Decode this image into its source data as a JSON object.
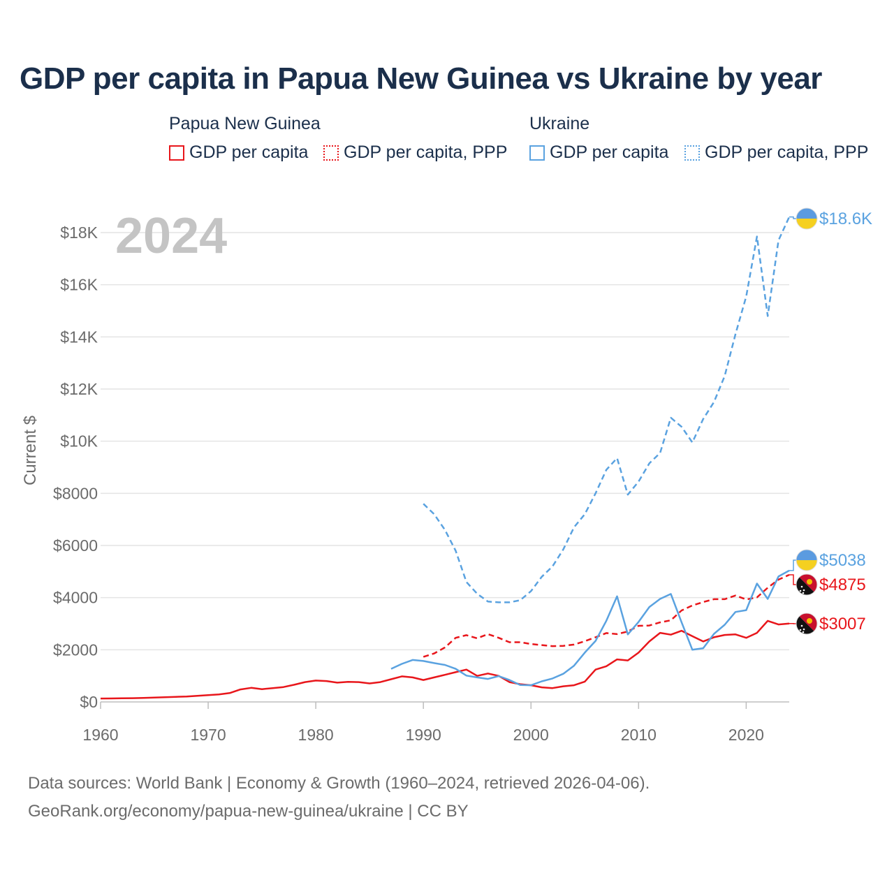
{
  "title": "GDP per capita in Papua New Guinea vs Ukraine by year",
  "legend": {
    "groups": [
      {
        "name": "Papua New Guinea",
        "items": [
          {
            "label": "GDP per capita",
            "style": "solid",
            "color": "#e8161b"
          },
          {
            "label": "GDP per capita, PPP",
            "style": "dotted",
            "color": "#e8161b"
          }
        ]
      },
      {
        "name": "Ukraine",
        "items": [
          {
            "label": "GDP per capita",
            "style": "solid",
            "color": "#5aa2e0"
          },
          {
            "label": "GDP per capita, PPP",
            "style": "dotted",
            "color": "#5aa2e0"
          }
        ]
      }
    ]
  },
  "year_label": "2024",
  "footer": {
    "line1": "Data sources: World Bank | Economy & Growth (1960–2024, retrieved 2026-04-06).",
    "line2": "GeoRank.org/economy/papua-new-guinea/ukraine | CC BY"
  },
  "chart_data": {
    "type": "line",
    "title": "GDP per capita in Papua New Guinea vs Ukraine by year",
    "xlabel": "",
    "ylabel": "Current $",
    "xlim": [
      1960,
      2024
    ],
    "ylim": [
      0,
      18700
    ],
    "x_ticks": [
      1960,
      1970,
      1980,
      1990,
      2000,
      2010,
      2020
    ],
    "x_tick_labels": [
      "1960",
      "1970",
      "1980",
      "1990",
      "2000",
      "2010",
      "2020"
    ],
    "y_ticks": [
      0,
      2000,
      4000,
      6000,
      8000,
      10000,
      12000,
      14000,
      16000,
      18000
    ],
    "y_tick_labels": [
      "$0",
      "$2000",
      "$4000",
      "$6000",
      "$8000",
      "$10K",
      "$12K",
      "$14K",
      "$16K",
      "$18K"
    ],
    "grid": true,
    "series": [
      {
        "name": "Papua New Guinea GDP per capita",
        "country": "Papua New Guinea",
        "color": "#e8161b",
        "dash": "solid",
        "end_label": "$3007",
        "flag": "png",
        "points": [
          [
            1960,
            130
          ],
          [
            1961,
            135
          ],
          [
            1962,
            140
          ],
          [
            1963,
            145
          ],
          [
            1964,
            155
          ],
          [
            1965,
            165
          ],
          [
            1966,
            180
          ],
          [
            1967,
            195
          ],
          [
            1968,
            210
          ],
          [
            1969,
            235
          ],
          [
            1970,
            260
          ],
          [
            1971,
            290
          ],
          [
            1972,
            340
          ],
          [
            1973,
            480
          ],
          [
            1974,
            540
          ],
          [
            1975,
            490
          ],
          [
            1976,
            530
          ],
          [
            1977,
            570
          ],
          [
            1978,
            660
          ],
          [
            1979,
            760
          ],
          [
            1980,
            820
          ],
          [
            1981,
            800
          ],
          [
            1982,
            740
          ],
          [
            1983,
            770
          ],
          [
            1984,
            760
          ],
          [
            1985,
            710
          ],
          [
            1986,
            760
          ],
          [
            1987,
            870
          ],
          [
            1988,
            980
          ],
          [
            1989,
            940
          ],
          [
            1990,
            840
          ],
          [
            1991,
            940
          ],
          [
            1992,
            1040
          ],
          [
            1993,
            1140
          ],
          [
            1994,
            1240
          ],
          [
            1995,
            1000
          ],
          [
            1996,
            1090
          ],
          [
            1997,
            1000
          ],
          [
            1998,
            760
          ],
          [
            1999,
            680
          ],
          [
            2000,
            640
          ],
          [
            2001,
            560
          ],
          [
            2002,
            530
          ],
          [
            2003,
            600
          ],
          [
            2004,
            640
          ],
          [
            2005,
            780
          ],
          [
            2006,
            1240
          ],
          [
            2007,
            1370
          ],
          [
            2008,
            1630
          ],
          [
            2009,
            1590
          ],
          [
            2010,
            1890
          ],
          [
            2011,
            2320
          ],
          [
            2012,
            2650
          ],
          [
            2013,
            2580
          ],
          [
            2014,
            2730
          ],
          [
            2015,
            2520
          ],
          [
            2016,
            2320
          ],
          [
            2017,
            2480
          ],
          [
            2018,
            2570
          ],
          [
            2019,
            2590
          ],
          [
            2020,
            2460
          ],
          [
            2021,
            2650
          ],
          [
            2022,
            3110
          ],
          [
            2023,
            2970
          ],
          [
            2024,
            3007
          ]
        ]
      },
      {
        "name": "Papua New Guinea GDP per capita, PPP",
        "country": "Papua New Guinea",
        "color": "#e8161b",
        "dash": "dashed",
        "end_label": "$4875",
        "flag": "png",
        "points": [
          [
            1990,
            1730
          ],
          [
            1991,
            1860
          ],
          [
            1992,
            2090
          ],
          [
            1993,
            2460
          ],
          [
            1994,
            2560
          ],
          [
            1995,
            2440
          ],
          [
            1996,
            2600
          ],
          [
            1997,
            2460
          ],
          [
            1998,
            2290
          ],
          [
            1999,
            2290
          ],
          [
            2000,
            2220
          ],
          [
            2001,
            2180
          ],
          [
            2002,
            2140
          ],
          [
            2003,
            2150
          ],
          [
            2004,
            2200
          ],
          [
            2005,
            2330
          ],
          [
            2006,
            2480
          ],
          [
            2007,
            2640
          ],
          [
            2008,
            2600
          ],
          [
            2009,
            2700
          ],
          [
            2010,
            2920
          ],
          [
            2011,
            2930
          ],
          [
            2012,
            3050
          ],
          [
            2013,
            3130
          ],
          [
            2014,
            3510
          ],
          [
            2015,
            3700
          ],
          [
            2016,
            3830
          ],
          [
            2017,
            3940
          ],
          [
            2018,
            3940
          ],
          [
            2019,
            4080
          ],
          [
            2020,
            3930
          ],
          [
            2021,
            4010
          ],
          [
            2022,
            4380
          ],
          [
            2023,
            4690
          ],
          [
            2024,
            4875
          ]
        ]
      },
      {
        "name": "Ukraine GDP per capita",
        "country": "Ukraine",
        "color": "#5aa2e0",
        "dash": "solid",
        "end_label": "$5038",
        "flag": "ukraine",
        "points": [
          [
            1987,
            1270
          ],
          [
            1988,
            1460
          ],
          [
            1989,
            1610
          ],
          [
            1990,
            1570
          ],
          [
            1991,
            1490
          ],
          [
            1992,
            1420
          ],
          [
            1993,
            1270
          ],
          [
            1994,
            1010
          ],
          [
            1995,
            940
          ],
          [
            1996,
            880
          ],
          [
            1997,
            990
          ],
          [
            1998,
            840
          ],
          [
            1999,
            650
          ],
          [
            2000,
            640
          ],
          [
            2001,
            790
          ],
          [
            2002,
            900
          ],
          [
            2003,
            1080
          ],
          [
            2004,
            1390
          ],
          [
            2005,
            1890
          ],
          [
            2006,
            2340
          ],
          [
            2007,
            3110
          ],
          [
            2008,
            4050
          ],
          [
            2009,
            2590
          ],
          [
            2010,
            3070
          ],
          [
            2011,
            3640
          ],
          [
            2012,
            3950
          ],
          [
            2013,
            4140
          ],
          [
            2014,
            3050
          ],
          [
            2015,
            2000
          ],
          [
            2016,
            2060
          ],
          [
            2017,
            2610
          ],
          [
            2018,
            2960
          ],
          [
            2019,
            3450
          ],
          [
            2020,
            3520
          ],
          [
            2021,
            4540
          ],
          [
            2022,
            3950
          ],
          [
            2023,
            4810
          ],
          [
            2024,
            5038
          ]
        ]
      },
      {
        "name": "Ukraine GDP per capita, PPP",
        "country": "Ukraine",
        "color": "#5aa2e0",
        "dash": "dashed",
        "end_label": "$18.6K",
        "flag": "ukraine",
        "points": [
          [
            1990,
            7600
          ],
          [
            1991,
            7200
          ],
          [
            1992,
            6600
          ],
          [
            1993,
            5800
          ],
          [
            1994,
            4600
          ],
          [
            1995,
            4150
          ],
          [
            1996,
            3850
          ],
          [
            1997,
            3820
          ],
          [
            1998,
            3820
          ],
          [
            1999,
            3900
          ],
          [
            2000,
            4250
          ],
          [
            2001,
            4800
          ],
          [
            2002,
            5200
          ],
          [
            2003,
            5850
          ],
          [
            2004,
            6700
          ],
          [
            2005,
            7200
          ],
          [
            2006,
            8000
          ],
          [
            2007,
            8900
          ],
          [
            2008,
            9350
          ],
          [
            2009,
            7950
          ],
          [
            2010,
            8450
          ],
          [
            2011,
            9150
          ],
          [
            2012,
            9550
          ],
          [
            2013,
            10900
          ],
          [
            2014,
            10550
          ],
          [
            2015,
            9950
          ],
          [
            2016,
            10850
          ],
          [
            2017,
            11500
          ],
          [
            2018,
            12500
          ],
          [
            2019,
            14100
          ],
          [
            2020,
            15550
          ],
          [
            2021,
            17850
          ],
          [
            2022,
            14800
          ],
          [
            2023,
            17700
          ],
          [
            2024,
            18600
          ]
        ]
      }
    ]
  }
}
